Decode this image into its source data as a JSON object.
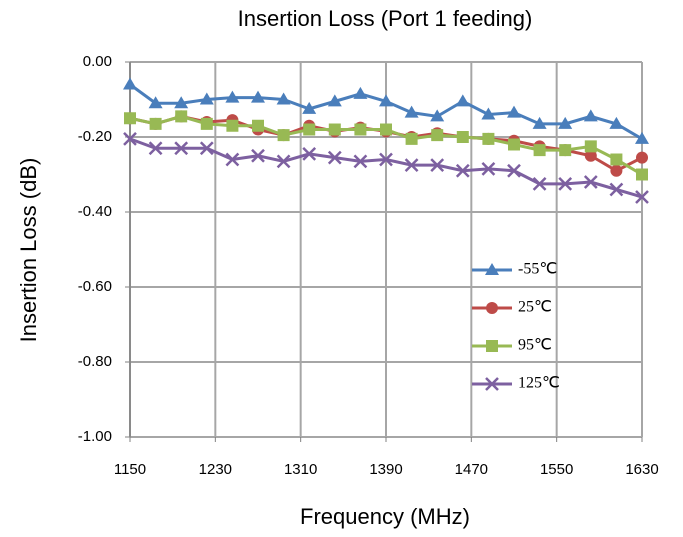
{
  "chart_data": {
    "type": "line",
    "title": "Insertion Loss (Port 1 feeding)",
    "x_label": "Frequency (MHz)",
    "y_label": "Insertion Loss (dB)",
    "x": [
      1150,
      1174,
      1198,
      1222,
      1246,
      1270,
      1294,
      1318,
      1342,
      1366,
      1390,
      1414,
      1438,
      1462,
      1486,
      1510,
      1534,
      1558,
      1582,
      1606,
      1630
    ],
    "xlim": [
      1150,
      1630
    ],
    "xticks": [
      1150,
      1230,
      1310,
      1390,
      1470,
      1550,
      1630
    ],
    "ylim": [
      -1,
      0
    ],
    "yticks": [
      {
        "value": -1,
        "label": "-1.00"
      },
      {
        "value": -0.8,
        "label": "-0.80"
      },
      {
        "value": -0.6,
        "label": "-0.60"
      },
      {
        "value": -0.4,
        "label": "-0.40"
      },
      {
        "value": -0.2,
        "label": "-0.20"
      },
      {
        "value": 0,
        "label": "0.00"
      }
    ],
    "grid": true,
    "legend": "right",
    "series": [
      {
        "name": "-55℃",
        "color": "#4a7ebb",
        "marker": "triangle",
        "values": [
          -0.06,
          -0.11,
          -0.11,
          -0.1,
          -0.095,
          -0.095,
          -0.1,
          -0.125,
          -0.105,
          -0.085,
          -0.105,
          -0.135,
          -0.145,
          -0.105,
          -0.14,
          -0.135,
          -0.165,
          -0.165,
          -0.145,
          -0.165,
          -0.205
        ]
      },
      {
        "name": "25℃",
        "color": "#be4b48",
        "marker": "circle",
        "values": [
          -0.15,
          -0.165,
          -0.145,
          -0.16,
          -0.155,
          -0.18,
          -0.195,
          -0.17,
          -0.185,
          -0.175,
          -0.185,
          -0.2,
          -0.19,
          -0.2,
          -0.205,
          -0.21,
          -0.225,
          -0.235,
          -0.25,
          -0.29,
          -0.255
        ]
      },
      {
        "name": "95℃",
        "color": "#98b954",
        "marker": "square",
        "values": [
          -0.15,
          -0.165,
          -0.145,
          -0.165,
          -0.17,
          -0.17,
          -0.195,
          -0.18,
          -0.18,
          -0.18,
          -0.18,
          -0.205,
          -0.195,
          -0.2,
          -0.205,
          -0.22,
          -0.235,
          -0.235,
          -0.225,
          -0.26,
          -0.3
        ]
      },
      {
        "name": "125℃",
        "color": "#7d60a0",
        "marker": "x",
        "values": [
          -0.205,
          -0.23,
          -0.23,
          -0.23,
          -0.26,
          -0.25,
          -0.265,
          -0.245,
          -0.255,
          -0.265,
          -0.26,
          -0.275,
          -0.275,
          -0.29,
          -0.285,
          -0.29,
          -0.325,
          -0.325,
          -0.32,
          -0.34,
          -0.36
        ]
      }
    ]
  }
}
